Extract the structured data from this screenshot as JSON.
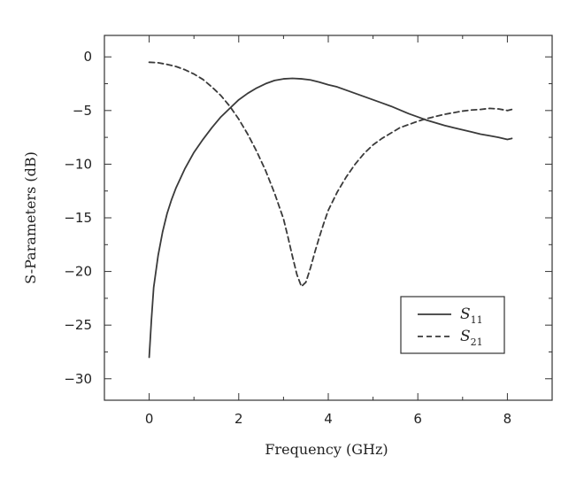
{
  "chart_data": {
    "type": "line",
    "title": "",
    "xlabel": "Frequency (GHz)",
    "ylabel": "S-Parameters (dB)",
    "xlim": [
      -1,
      9
    ],
    "ylim": [
      -32,
      2
    ],
    "x_ticks": [
      0,
      2,
      4,
      6,
      8
    ],
    "y_ticks": [
      0,
      -5,
      -10,
      -15,
      -20,
      -25,
      -30
    ],
    "grid": false,
    "legend_position": "bottom-right",
    "series": [
      {
        "name": "S11",
        "name_main": "S",
        "name_sub": "11",
        "style": "solid",
        "color": "#3a3a3a",
        "x": [
          0.0,
          0.05,
          0.1,
          0.2,
          0.3,
          0.4,
          0.5,
          0.6,
          0.8,
          1.0,
          1.2,
          1.4,
          1.6,
          1.8,
          2.0,
          2.2,
          2.4,
          2.6,
          2.8,
          3.0,
          3.2,
          3.4,
          3.6,
          3.8,
          4.0,
          4.2,
          4.4,
          4.6,
          4.8,
          5.0,
          5.2,
          5.4,
          5.6,
          5.8,
          6.0,
          6.2,
          6.4,
          6.6,
          6.8,
          7.0,
          7.2,
          7.4,
          7.6,
          7.8,
          8.0,
          8.1
        ],
        "y": [
          -28.0,
          -24.5,
          -21.5,
          -18.5,
          -16.3,
          -14.6,
          -13.3,
          -12.2,
          -10.4,
          -8.9,
          -7.7,
          -6.6,
          -5.6,
          -4.8,
          -4.0,
          -3.4,
          -2.9,
          -2.5,
          -2.2,
          -2.05,
          -2.0,
          -2.05,
          -2.15,
          -2.35,
          -2.6,
          -2.8,
          -3.1,
          -3.4,
          -3.7,
          -4.0,
          -4.3,
          -4.6,
          -4.95,
          -5.3,
          -5.6,
          -5.9,
          -6.15,
          -6.4,
          -6.6,
          -6.8,
          -7.0,
          -7.2,
          -7.35,
          -7.5,
          -7.7,
          -7.6
        ]
      },
      {
        "name": "S21",
        "name_main": "S",
        "name_sub": "21",
        "style": "dashed",
        "color": "#3a3a3a",
        "x": [
          0.0,
          0.2,
          0.4,
          0.6,
          0.8,
          1.0,
          1.2,
          1.4,
          1.6,
          1.8,
          2.0,
          2.2,
          2.4,
          2.6,
          2.8,
          3.0,
          3.1,
          3.2,
          3.3,
          3.4,
          3.5,
          3.6,
          3.7,
          3.8,
          3.9,
          4.0,
          4.2,
          4.4,
          4.6,
          4.8,
          5.0,
          5.2,
          5.4,
          5.6,
          5.8,
          6.0,
          6.2,
          6.4,
          6.6,
          6.8,
          7.0,
          7.2,
          7.4,
          7.6,
          7.8,
          8.0,
          8.1
        ],
        "y": [
          -0.5,
          -0.55,
          -0.7,
          -0.9,
          -1.2,
          -1.6,
          -2.1,
          -2.8,
          -3.6,
          -4.6,
          -5.8,
          -7.2,
          -8.8,
          -10.6,
          -12.7,
          -15.1,
          -16.8,
          -18.6,
          -20.3,
          -21.4,
          -21.0,
          -19.7,
          -18.2,
          -16.8,
          -15.5,
          -14.3,
          -12.6,
          -11.2,
          -10.0,
          -9.0,
          -8.2,
          -7.6,
          -7.1,
          -6.6,
          -6.3,
          -6.0,
          -5.75,
          -5.55,
          -5.35,
          -5.2,
          -5.05,
          -4.95,
          -4.9,
          -4.8,
          -4.85,
          -5.0,
          -4.9
        ]
      }
    ]
  }
}
